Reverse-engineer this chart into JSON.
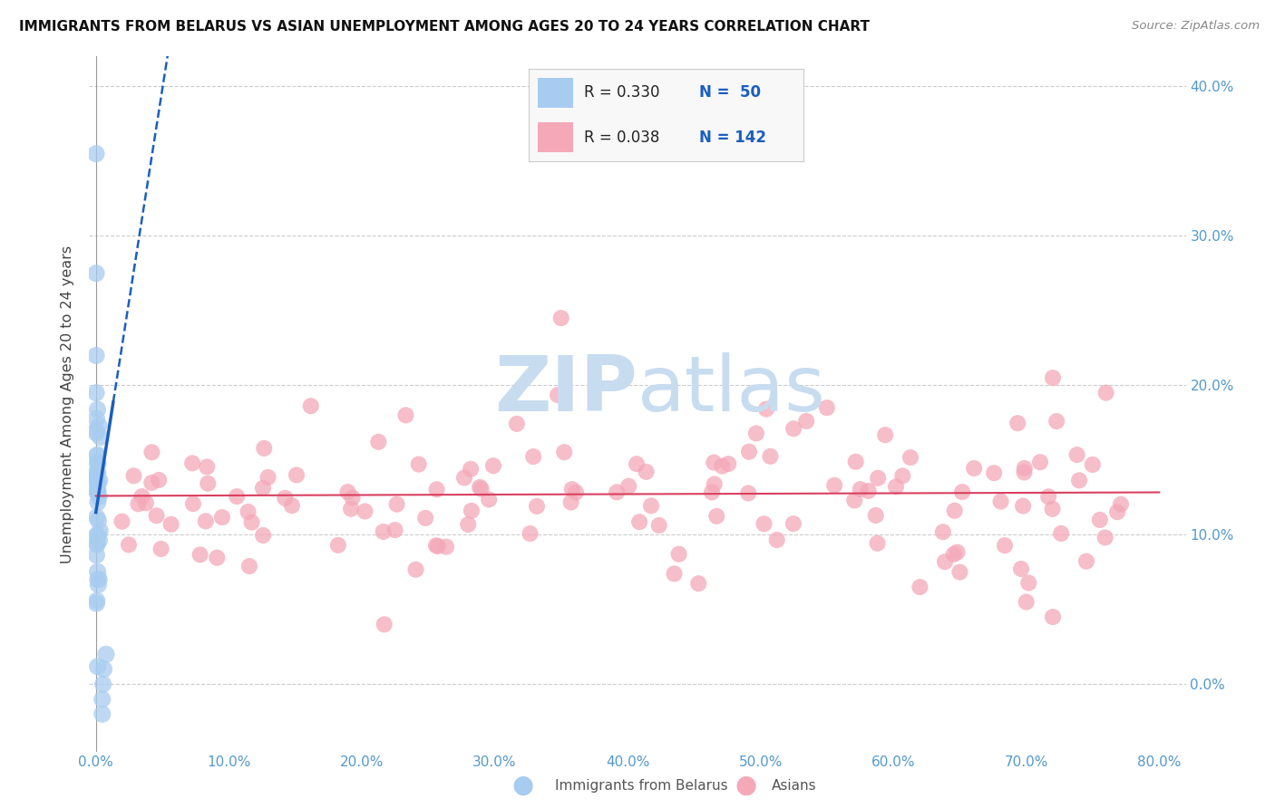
{
  "title": "IMMIGRANTS FROM BELARUS VS ASIAN UNEMPLOYMENT AMONG AGES 20 TO 24 YEARS CORRELATION CHART",
  "source": "Source: ZipAtlas.com",
  "ylabel": "Unemployment Among Ages 20 to 24 years",
  "xlim": [
    -0.005,
    0.82
  ],
  "ylim": [
    -0.045,
    0.42
  ],
  "xtick_vals": [
    0.0,
    0.1,
    0.2,
    0.3,
    0.4,
    0.5,
    0.6,
    0.7,
    0.8
  ],
  "ytick_vals": [
    0.0,
    0.1,
    0.2,
    0.3,
    0.4
  ],
  "ytick_labels_right": [
    "0.0%",
    "10.0%",
    "20.0%",
    "30.0%",
    "40.0%"
  ],
  "xtick_labels": [
    "0.0%",
    "10.0%",
    "20.0%",
    "30.0%",
    "40.0%",
    "50.0%",
    "60.0%",
    "70.0%",
    "80.0%"
  ],
  "legend_r1": "R = 0.330",
  "legend_n1": "N =  50",
  "legend_r2": "R = 0.038",
  "legend_n2": "N = 142",
  "blue_fill": "#A8CCF0",
  "pink_fill": "#F4A8B8",
  "blue_line_color": "#1B5EBF",
  "pink_line_color": "#D94060",
  "tick_color": "#5599CC",
  "watermark_color": "#C8DCF0",
  "background_color": "#ffffff",
  "grid_color": "#CCCCCC",
  "ylabel_color": "#444444",
  "title_color": "#111111",
  "source_color": "#888888"
}
